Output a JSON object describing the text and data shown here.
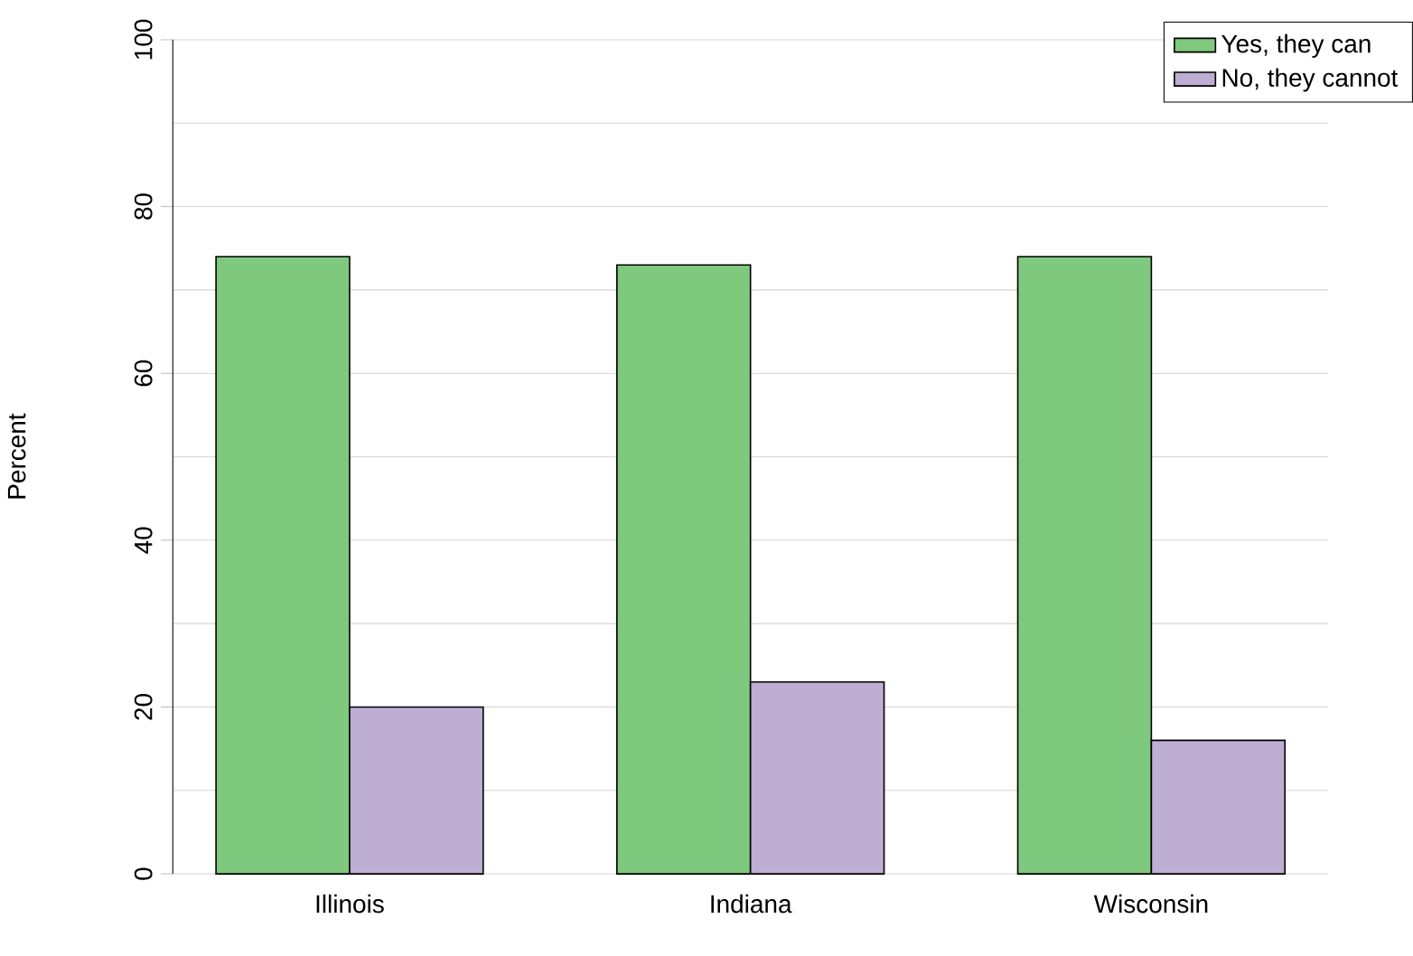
{
  "chart_data": {
    "type": "bar",
    "ylabel": "Percent",
    "categories": [
      "Illinois",
      "Indiana",
      "Wisconsin"
    ],
    "series": [
      {
        "name": "Yes, they can",
        "color": "#7fc97f",
        "values": [
          74,
          73,
          74
        ]
      },
      {
        "name": "No, they cannot",
        "color": "#beaed4",
        "values": [
          20,
          23,
          16
        ]
      }
    ],
    "ylim": [
      0,
      100
    ],
    "yticks": [
      0,
      20,
      40,
      60,
      80,
      100
    ],
    "grid": true,
    "legend": "top right"
  }
}
